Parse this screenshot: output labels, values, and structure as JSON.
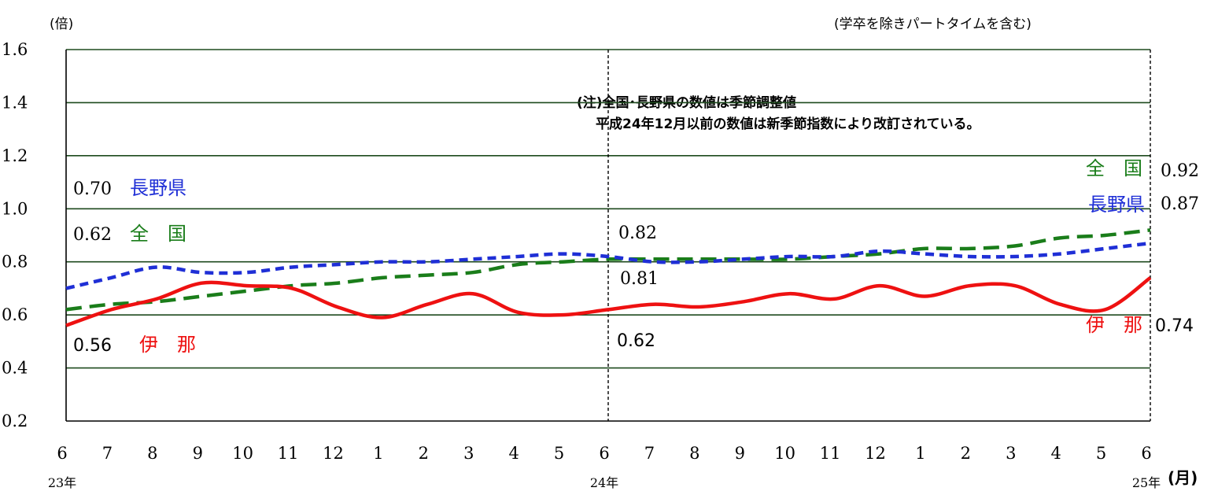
{
  "chart_data": {
    "type": "line",
    "title": "",
    "ylabel": "(倍)",
    "xlabel": "(月)",
    "top_note": "(学卒を除きパートタイムを含む)",
    "note_line1": "(注)全国･長野県の数値は季節調整値",
    "note_line2": "平成24年12月以前の数値は新季節指数により改訂されている。",
    "ylim": [
      0.2,
      1.6
    ],
    "yticks": [
      "0.2",
      "0.4",
      "0.6",
      "0.8",
      "1.0",
      "1.2",
      "1.4",
      "1.6"
    ],
    "categories": [
      "6",
      "7",
      "8",
      "9",
      "10",
      "11",
      "12",
      "1",
      "2",
      "3",
      "4",
      "5",
      "6",
      "7",
      "8",
      "9",
      "10",
      "11",
      "12",
      "1",
      "2",
      "3",
      "4",
      "5",
      "6"
    ],
    "year_labels": [
      {
        "index": 0,
        "label": "23年"
      },
      {
        "index": 12,
        "label": "24年"
      },
      {
        "index": 24,
        "label": "25年"
      }
    ],
    "grid": true,
    "series": [
      {
        "name": "全　国",
        "color": "#1a7d1a",
        "style": "dashed",
        "values": [
          0.62,
          0.64,
          0.65,
          0.67,
          0.69,
          0.71,
          0.72,
          0.74,
          0.75,
          0.76,
          0.79,
          0.8,
          0.81,
          0.81,
          0.81,
          0.81,
          0.81,
          0.82,
          0.83,
          0.85,
          0.85,
          0.86,
          0.89,
          0.9,
          0.92
        ],
        "start_value_label": "0.62",
        "mid_value_label": "0.81",
        "end_value_label": "0.92"
      },
      {
        "name": "長野県",
        "color": "#1f2fd6",
        "style": "dotted",
        "values": [
          0.7,
          0.74,
          0.78,
          0.76,
          0.76,
          0.78,
          0.79,
          0.8,
          0.8,
          0.81,
          0.82,
          0.83,
          0.82,
          0.8,
          0.8,
          0.81,
          0.82,
          0.82,
          0.84,
          0.83,
          0.82,
          0.82,
          0.83,
          0.85,
          0.87
        ],
        "start_value_label": "0.70",
        "mid_value_label": "0.82",
        "end_value_label": "0.87"
      },
      {
        "name": "伊　那",
        "color": "#ee1111",
        "style": "solid",
        "values": [
          0.56,
          0.62,
          0.66,
          0.72,
          0.71,
          0.7,
          0.63,
          0.59,
          0.64,
          0.68,
          0.61,
          0.6,
          0.62,
          0.64,
          0.63,
          0.65,
          0.68,
          0.66,
          0.71,
          0.67,
          0.71,
          0.71,
          0.64,
          0.62,
          0.74
        ],
        "start_value_label": "0.56",
        "mid_value_label": "0.62",
        "end_value_label": "0.74"
      }
    ]
  }
}
